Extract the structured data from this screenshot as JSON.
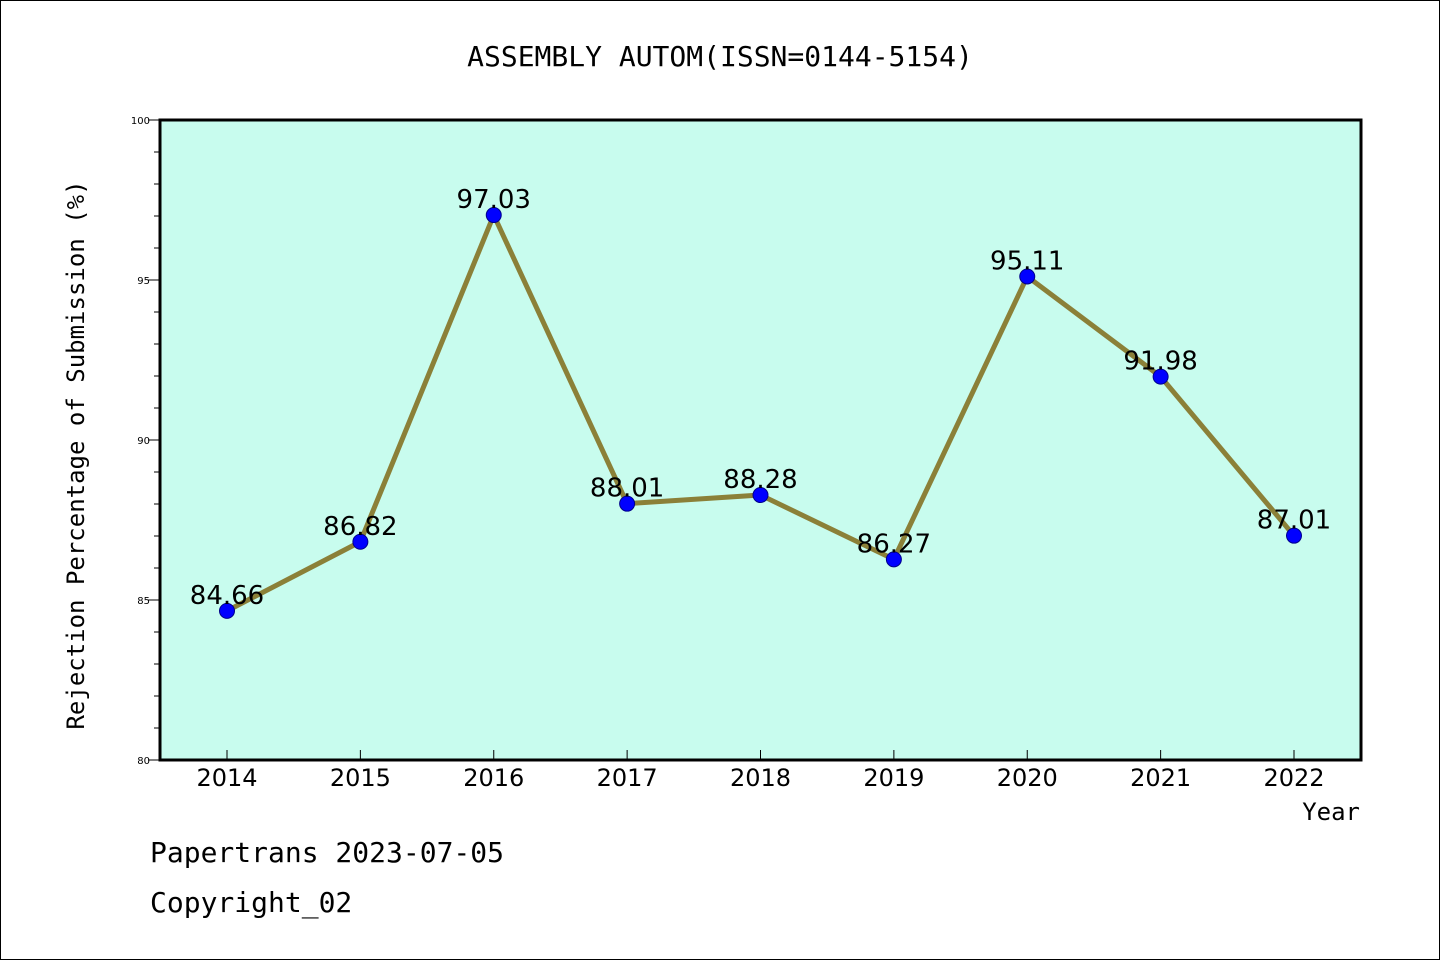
{
  "chart_data": {
    "type": "line",
    "title": "ASSEMBLY AUTOM(ISSN=0144-5154)",
    "xlabel": "Year",
    "ylabel": "Rejection Percentage of Submission (%)",
    "categories": [
      "2014",
      "2015",
      "2016",
      "2017",
      "2018",
      "2019",
      "2020",
      "2021",
      "2022"
    ],
    "values": [
      84.66,
      86.82,
      97.03,
      88.01,
      88.28,
      86.27,
      95.11,
      91.98,
      87.01
    ],
    "data_labels": [
      "84.66",
      "86.82",
      "97.03",
      "88.01",
      "88.28",
      "86.27",
      "95.11",
      "91.98",
      "87.01"
    ],
    "ylim": [
      80,
      100
    ],
    "yticks": [
      80,
      85,
      90,
      95,
      100
    ],
    "grid": false,
    "colors": {
      "plot_background": "#c8fcee",
      "line": "#8b8038",
      "marker": "#0000ff"
    }
  },
  "footer": {
    "line1": "Papertrans 2023-07-05",
    "line2": "Copyright_02"
  }
}
